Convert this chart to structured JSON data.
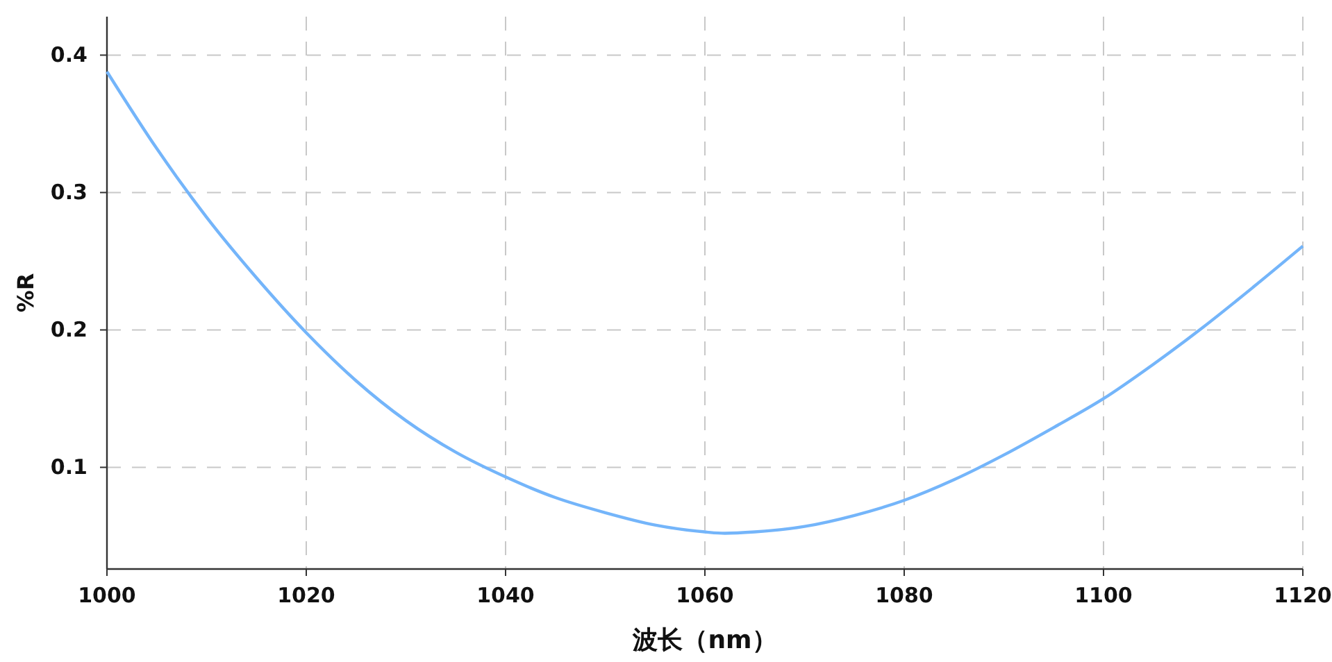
{
  "chart_data": {
    "type": "line",
    "xlabel": "波长（nm）",
    "ylabel": "%R",
    "x": [
      1000,
      1005,
      1010,
      1015,
      1020,
      1025,
      1030,
      1035,
      1040,
      1045,
      1050,
      1055,
      1060,
      1062,
      1065,
      1070,
      1075,
      1080,
      1085,
      1090,
      1095,
      1100,
      1105,
      1110,
      1115,
      1120
    ],
    "series": [
      {
        "color": "#74b5fa",
        "values": [
          0.388,
          0.332,
          0.282,
          0.238,
          0.198,
          0.163,
          0.134,
          0.111,
          0.093,
          0.078,
          0.067,
          0.058,
          0.053,
          0.052,
          0.053,
          0.057,
          0.065,
          0.076,
          0.091,
          0.109,
          0.129,
          0.15,
          0.175,
          0.202,
          0.231,
          0.261
        ]
      }
    ],
    "xlim": [
      1000,
      1120
    ],
    "xticks": [
      1000,
      1020,
      1040,
      1060,
      1080,
      1100,
      1120
    ],
    "ylim": [
      0.026,
      0.428
    ],
    "yticks": [
      0.1,
      0.2,
      0.3,
      0.4
    ],
    "grid": true,
    "line_style": "solid",
    "marker": "none"
  }
}
